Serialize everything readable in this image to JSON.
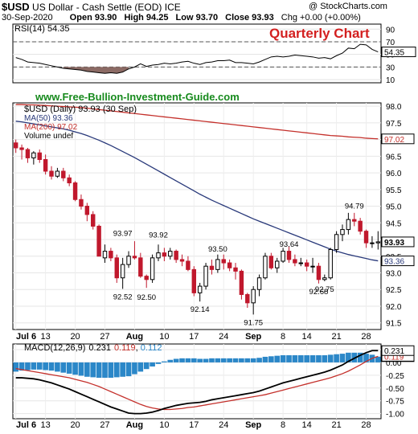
{
  "header": {
    "symbol": "$USD",
    "name": "US Dollar - Cash Settle (EOD)",
    "exchange": "ICE",
    "credit": "@ StockCharts.com",
    "date": "30-Sep-2020",
    "open": "Open 93.90",
    "high": "High 94.25",
    "low": "Low 93.70",
    "close": "Close 93.93",
    "change": "Chg +0.00 (+0.00%)"
  },
  "annotations": {
    "quarterly": "Quarterly Chart",
    "website": "www.Free-Bullion-Investment-Guide.com"
  },
  "legends": {
    "rsi": "RSI(14) 54.35",
    "price": "$USD (Daily) 93.93 (30 Sep)",
    "ma50": "MA(50) 93.36",
    "ma200": "MA(200) 97.02",
    "volume": "Volume undef",
    "macd_name": "MACD(12,26,9)",
    "macd_v1": "0.231",
    "macd_v2": "0.119",
    "macd_v3": "0.112"
  },
  "colors": {
    "up": "#000000",
    "down": "#c0182d",
    "ma50": "#29397a",
    "ma200": "#c4302b",
    "rsi_fill": "#8b6a64",
    "macd_hist": "#2b87c8",
    "quarterly": "#d32020",
    "website": "#178a1d"
  },
  "chart_data": [
    {
      "type": "line",
      "title": "RSI(14)",
      "value_labels": [
        "54.35"
      ],
      "yticks": [
        10,
        30,
        50,
        70,
        90
      ],
      "ylim": [
        5,
        98
      ],
      "reference_lines": [
        30,
        70
      ],
      "x": [
        "Jul 6",
        "Jul 7",
        "Jul 8",
        "Jul 9",
        "Jul 10",
        "Jul 13",
        "Jul 14",
        "Jul 15",
        "Jul 16",
        "Jul 17",
        "Jul 20",
        "Jul 21",
        "Jul 22",
        "Jul 23",
        "Jul 24",
        "Jul 27",
        "Jul 28",
        "Jul 29",
        "Jul 30",
        "Jul 31",
        "Aug 3",
        "Aug 4",
        "Aug 5",
        "Aug 6",
        "Aug 7",
        "Aug 10",
        "Aug 11",
        "Aug 12",
        "Aug 13",
        "Aug 14",
        "Aug 17",
        "Aug 18",
        "Aug 19",
        "Aug 20",
        "Aug 21",
        "Aug 24",
        "Aug 25",
        "Aug 26",
        "Aug 27",
        "Aug 28",
        "Aug 31",
        "Sep 1",
        "Sep 2",
        "Sep 3",
        "Sep 4",
        "Sep 8",
        "Sep 9",
        "Sep 10",
        "Sep 11",
        "Sep 14",
        "Sep 15",
        "Sep 16",
        "Sep 17",
        "Sep 18",
        "Sep 21",
        "Sep 22",
        "Sep 23",
        "Sep 24",
        "Sep 25",
        "Sep 28",
        "Sep 29",
        "Sep 30"
      ],
      "series": [
        {
          "name": "RSI(14)",
          "values": [
            45,
            42,
            38,
            37,
            36,
            34,
            32,
            30,
            28,
            27,
            26,
            25,
            23,
            22,
            21,
            20,
            21,
            20,
            22,
            27,
            30,
            35,
            31,
            33,
            34,
            36,
            35,
            36,
            38,
            39,
            36,
            34,
            37,
            38,
            40,
            40,
            41,
            37,
            37,
            36,
            35,
            38,
            42,
            46,
            47,
            46,
            47,
            49,
            48,
            47,
            46,
            44,
            45,
            43,
            48,
            52,
            60,
            59,
            66,
            65,
            58,
            54
          ]
        }
      ]
    },
    {
      "type": "candlestick",
      "title": "$USD (Daily)",
      "value_labels": [
        "93.93",
        "93.36",
        "97.02"
      ],
      "yticks": [
        91.5,
        92.0,
        92.5,
        93.0,
        93.5,
        94.0,
        94.5,
        95.0,
        95.5,
        96.0,
        96.5,
        97.0,
        97.5,
        98.0
      ],
      "ylim": [
        91.3,
        98.1
      ],
      "x_tick_labels": [
        "Jul 6",
        "13",
        "20",
        "27",
        "Aug",
        "10",
        "17",
        "24",
        "Sep",
        "8",
        "14",
        "21",
        "28"
      ],
      "x": [
        "Jul 6",
        "Jul 7",
        "Jul 8",
        "Jul 9",
        "Jul 10",
        "Jul 13",
        "Jul 14",
        "Jul 15",
        "Jul 16",
        "Jul 17",
        "Jul 20",
        "Jul 21",
        "Jul 22",
        "Jul 23",
        "Jul 24",
        "Jul 27",
        "Jul 28",
        "Jul 29",
        "Jul 30",
        "Jul 31",
        "Aug 3",
        "Aug 4",
        "Aug 5",
        "Aug 6",
        "Aug 7",
        "Aug 10",
        "Aug 11",
        "Aug 12",
        "Aug 13",
        "Aug 14",
        "Aug 17",
        "Aug 18",
        "Aug 19",
        "Aug 20",
        "Aug 21",
        "Aug 24",
        "Aug 25",
        "Aug 26",
        "Aug 27",
        "Aug 28",
        "Aug 31",
        "Sep 1",
        "Sep 2",
        "Sep 3",
        "Sep 4",
        "Sep 8",
        "Sep 9",
        "Sep 10",
        "Sep 11",
        "Sep 14",
        "Sep 15",
        "Sep 16",
        "Sep 17",
        "Sep 18",
        "Sep 21",
        "Sep 22",
        "Sep 23",
        "Sep 24",
        "Sep 25",
        "Sep 28",
        "Sep 29",
        "Sep 30"
      ],
      "open": [
        96.9,
        96.75,
        96.7,
        96.45,
        96.6,
        96.4,
        96.05,
        95.9,
        96.05,
        95.85,
        95.7,
        95.2,
        95.0,
        94.75,
        94.4,
        93.45,
        93.65,
        93.45,
        92.85,
        93.25,
        93.5,
        93.45,
        92.9,
        92.8,
        93.45,
        93.6,
        93.5,
        93.65,
        93.4,
        93.35,
        93.1,
        92.4,
        92.6,
        93.2,
        93.1,
        93.4,
        93.3,
        93.15,
        93.05,
        92.35,
        92.1,
        92.5,
        92.85,
        93.5,
        93.15,
        93.35,
        93.65,
        93.4,
        93.3,
        93.3,
        93.2,
        93.2,
        92.8,
        92.85,
        93.7,
        94.15,
        94.3,
        94.6,
        94.55,
        94.25,
        93.9,
        93.9
      ],
      "high": [
        97.0,
        96.85,
        96.75,
        96.65,
        96.7,
        96.55,
        96.2,
        96.15,
        96.15,
        95.95,
        95.75,
        95.35,
        95.1,
        94.85,
        94.45,
        93.85,
        93.75,
        93.55,
        93.45,
        93.65,
        93.95,
        93.6,
        92.95,
        93.55,
        93.85,
        93.75,
        93.75,
        93.7,
        93.55,
        93.5,
        93.2,
        92.7,
        93.3,
        93.4,
        93.55,
        93.55,
        93.4,
        93.3,
        93.1,
        92.4,
        92.6,
        92.95,
        93.6,
        93.6,
        93.45,
        93.75,
        93.8,
        93.55,
        93.45,
        93.4,
        93.45,
        93.3,
        92.95,
        93.75,
        94.25,
        94.45,
        94.8,
        94.8,
        94.65,
        94.3,
        94.1,
        94.25
      ],
      "low": [
        96.6,
        96.4,
        96.3,
        96.25,
        96.3,
        95.95,
        95.8,
        95.85,
        95.75,
        95.6,
        95.15,
        94.9,
        94.55,
        94.3,
        93.5,
        93.3,
        93.35,
        92.7,
        92.52,
        93.15,
        93.4,
        92.85,
        92.55,
        92.7,
        93.35,
        93.35,
        93.4,
        93.3,
        93.2,
        93.05,
        92.3,
        92.14,
        92.5,
        92.95,
        93.0,
        93.1,
        93.05,
        92.8,
        92.2,
        91.95,
        91.75,
        92.3,
        92.8,
        93.1,
        93.0,
        93.3,
        93.3,
        93.2,
        93.2,
        93.05,
        93.0,
        92.68,
        92.75,
        92.8,
        93.6,
        93.95,
        94.15,
        94.4,
        94.15,
        93.75,
        93.75,
        93.7
      ],
      "close": [
        96.75,
        96.7,
        96.45,
        96.6,
        96.4,
        96.05,
        95.9,
        96.05,
        95.85,
        95.7,
        95.2,
        95.0,
        94.75,
        94.4,
        93.5,
        93.65,
        93.45,
        92.85,
        93.25,
        93.5,
        93.45,
        92.9,
        92.8,
        93.45,
        93.6,
        93.5,
        93.65,
        93.4,
        93.35,
        93.1,
        92.4,
        92.6,
        93.2,
        93.1,
        93.4,
        93.3,
        93.15,
        93.05,
        92.35,
        92.1,
        92.5,
        92.85,
        93.5,
        93.15,
        93.35,
        93.65,
        93.4,
        93.3,
        93.3,
        93.2,
        93.2,
        92.8,
        92.85,
        93.7,
        94.15,
        94.3,
        94.6,
        94.55,
        94.25,
        93.9,
        93.9,
        93.93
      ],
      "ma50": [
        97.55,
        97.53,
        97.5,
        97.47,
        97.44,
        97.41,
        97.38,
        97.35,
        97.32,
        97.28,
        97.23,
        97.18,
        97.12,
        97.05,
        96.98,
        96.9,
        96.82,
        96.73,
        96.64,
        96.55,
        96.46,
        96.36,
        96.26,
        96.16,
        96.06,
        95.96,
        95.86,
        95.76,
        95.66,
        95.56,
        95.46,
        95.36,
        95.27,
        95.18,
        95.1,
        95.02,
        94.94,
        94.86,
        94.78,
        94.7,
        94.62,
        94.55,
        94.48,
        94.41,
        94.34,
        94.27,
        94.2,
        94.13,
        94.06,
        93.99,
        93.92,
        93.85,
        93.78,
        93.71,
        93.65,
        93.6,
        93.55,
        93.51,
        93.47,
        93.43,
        93.39,
        93.36
      ],
      "ma200": [
        98.05,
        98.05,
        98.04,
        98.04,
        98.03,
        98.02,
        98.01,
        98.0,
        97.99,
        97.98,
        97.97,
        97.96,
        97.94,
        97.92,
        97.9,
        97.88,
        97.86,
        97.84,
        97.82,
        97.8,
        97.78,
        97.76,
        97.74,
        97.72,
        97.7,
        97.68,
        97.66,
        97.64,
        97.62,
        97.6,
        97.58,
        97.56,
        97.54,
        97.52,
        97.5,
        97.48,
        97.46,
        97.44,
        97.42,
        97.4,
        97.38,
        97.36,
        97.34,
        97.32,
        97.3,
        97.28,
        97.26,
        97.24,
        97.22,
        97.2,
        97.18,
        97.16,
        97.14,
        97.12,
        97.11,
        97.1,
        97.08,
        97.07,
        97.06,
        97.04,
        97.03,
        97.02
      ],
      "annotations": [
        {
          "label": "93.97",
          "x": "Jul 30",
          "y": 93.97
        },
        {
          "label": "92.52",
          "x": "Jul 30",
          "y": 92.52
        },
        {
          "label": "92.50",
          "x": "Aug 5",
          "y": 92.5
        },
        {
          "label": "93.92",
          "x": "Aug 7",
          "y": 93.92
        },
        {
          "label": "92.14",
          "x": "Aug 18",
          "y": 92.14
        },
        {
          "label": "93.50",
          "x": "Aug 21",
          "y": 93.5
        },
        {
          "label": "91.75",
          "x": "Aug 31",
          "y": 91.75
        },
        {
          "label": "93.64",
          "x": "Sep 9",
          "y": 93.64
        },
        {
          "label": "92.68",
          "x": "Sep 16",
          "y": 92.68
        },
        {
          "label": "92.75",
          "x": "Sep 17",
          "y": 92.75
        },
        {
          "label": "94.79",
          "x": "Sep 24",
          "y": 94.79
        }
      ]
    },
    {
      "type": "line",
      "title": "MACD(12,26,9)",
      "value_labels": [
        "0.231",
        "0.119",
        "0.112"
      ],
      "yticks": [
        0.25,
        0.0,
        -0.25,
        -0.5,
        -0.75,
        -1.0
      ],
      "ylim": [
        -1.1,
        0.36
      ],
      "x": [
        "Jul 6",
        "Jul 7",
        "Jul 8",
        "Jul 9",
        "Jul 10",
        "Jul 13",
        "Jul 14",
        "Jul 15",
        "Jul 16",
        "Jul 17",
        "Jul 20",
        "Jul 21",
        "Jul 22",
        "Jul 23",
        "Jul 24",
        "Jul 27",
        "Jul 28",
        "Jul 29",
        "Jul 30",
        "Jul 31",
        "Aug 3",
        "Aug 4",
        "Aug 5",
        "Aug 6",
        "Aug 7",
        "Aug 10",
        "Aug 11",
        "Aug 12",
        "Aug 13",
        "Aug 14",
        "Aug 17",
        "Aug 18",
        "Aug 19",
        "Aug 20",
        "Aug 21",
        "Aug 24",
        "Aug 25",
        "Aug 26",
        "Aug 27",
        "Aug 28",
        "Aug 31",
        "Sep 1",
        "Sep 2",
        "Sep 3",
        "Sep 4",
        "Sep 8",
        "Sep 9",
        "Sep 10",
        "Sep 11",
        "Sep 14",
        "Sep 15",
        "Sep 16",
        "Sep 17",
        "Sep 18",
        "Sep 21",
        "Sep 22",
        "Sep 23",
        "Sep 24",
        "Sep 25",
        "Sep 28",
        "Sep 29",
        "Sep 30"
      ],
      "series": [
        {
          "name": "MACD",
          "values": [
            -0.3,
            -0.3,
            -0.31,
            -0.32,
            -0.34,
            -0.37,
            -0.4,
            -0.44,
            -0.48,
            -0.52,
            -0.57,
            -0.62,
            -0.67,
            -0.72,
            -0.77,
            -0.82,
            -0.87,
            -0.91,
            -0.95,
            -0.99,
            -1.0,
            -1.0,
            -0.99,
            -0.97,
            -0.94,
            -0.9,
            -0.87,
            -0.84,
            -0.82,
            -0.8,
            -0.79,
            -0.78,
            -0.76,
            -0.73,
            -0.71,
            -0.69,
            -0.67,
            -0.65,
            -0.63,
            -0.61,
            -0.59,
            -0.56,
            -0.52,
            -0.48,
            -0.44,
            -0.4,
            -0.37,
            -0.34,
            -0.31,
            -0.28,
            -0.25,
            -0.22,
            -0.19,
            -0.15,
            -0.1,
            -0.05,
            0.02,
            0.08,
            0.14,
            0.19,
            0.23,
            0.231
          ]
        },
        {
          "name": "Signal",
          "values": [
            -0.12,
            -0.14,
            -0.16,
            -0.18,
            -0.2,
            -0.22,
            -0.24,
            -0.26,
            -0.28,
            -0.3,
            -0.33,
            -0.36,
            -0.39,
            -0.43,
            -0.47,
            -0.52,
            -0.57,
            -0.62,
            -0.67,
            -0.72,
            -0.77,
            -0.82,
            -0.86,
            -0.89,
            -0.91,
            -0.92,
            -0.92,
            -0.91,
            -0.9,
            -0.88,
            -0.87,
            -0.85,
            -0.83,
            -0.81,
            -0.79,
            -0.77,
            -0.75,
            -0.73,
            -0.71,
            -0.69,
            -0.67,
            -0.65,
            -0.63,
            -0.6,
            -0.57,
            -0.54,
            -0.51,
            -0.48,
            -0.45,
            -0.42,
            -0.39,
            -0.36,
            -0.33,
            -0.3,
            -0.26,
            -0.22,
            -0.17,
            -0.11,
            -0.05,
            0.02,
            0.08,
            0.119
          ]
        },
        {
          "name": "Histogram",
          "values": [
            -0.18,
            -0.16,
            -0.15,
            -0.14,
            -0.14,
            -0.15,
            -0.16,
            -0.18,
            -0.2,
            -0.22,
            -0.24,
            -0.26,
            -0.28,
            -0.29,
            -0.3,
            -0.3,
            -0.3,
            -0.29,
            -0.28,
            -0.27,
            -0.23,
            -0.18,
            -0.13,
            -0.08,
            -0.03,
            0.02,
            0.05,
            0.07,
            0.08,
            0.08,
            0.08,
            0.07,
            0.07,
            0.08,
            0.08,
            0.08,
            0.08,
            0.08,
            0.08,
            0.08,
            0.08,
            0.09,
            0.11,
            0.12,
            0.13,
            0.14,
            0.14,
            0.14,
            0.14,
            0.14,
            0.14,
            0.14,
            0.14,
            0.15,
            0.16,
            0.17,
            0.19,
            0.19,
            0.19,
            0.17,
            0.15,
            0.112
          ]
        }
      ]
    }
  ]
}
